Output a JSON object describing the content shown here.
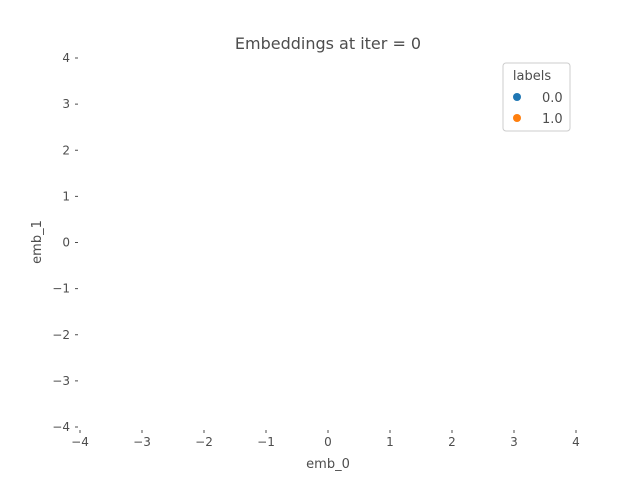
{
  "chart_data": {
    "type": "scatter",
    "title": "Embeddings at iter = 0",
    "xlabel": "emb_0",
    "ylabel": "emb_1",
    "xlim": [
      -4,
      4
    ],
    "ylim": [
      -4,
      4
    ],
    "x_ticks": [
      "−4",
      "−3",
      "−2",
      "−1",
      "0",
      "1",
      "2",
      "3",
      "4"
    ],
    "y_ticks": [
      "4",
      "3",
      "2",
      "1",
      "0",
      "−1",
      "−2",
      "−3",
      "−4"
    ],
    "grid": false,
    "legend": {
      "title": "labels",
      "placement": "top-right"
    },
    "series": [
      {
        "name": "0.0",
        "color": "#1f77b4",
        "points": []
      },
      {
        "name": "1.0",
        "color": "#ff7f0e",
        "points": []
      }
    ]
  }
}
